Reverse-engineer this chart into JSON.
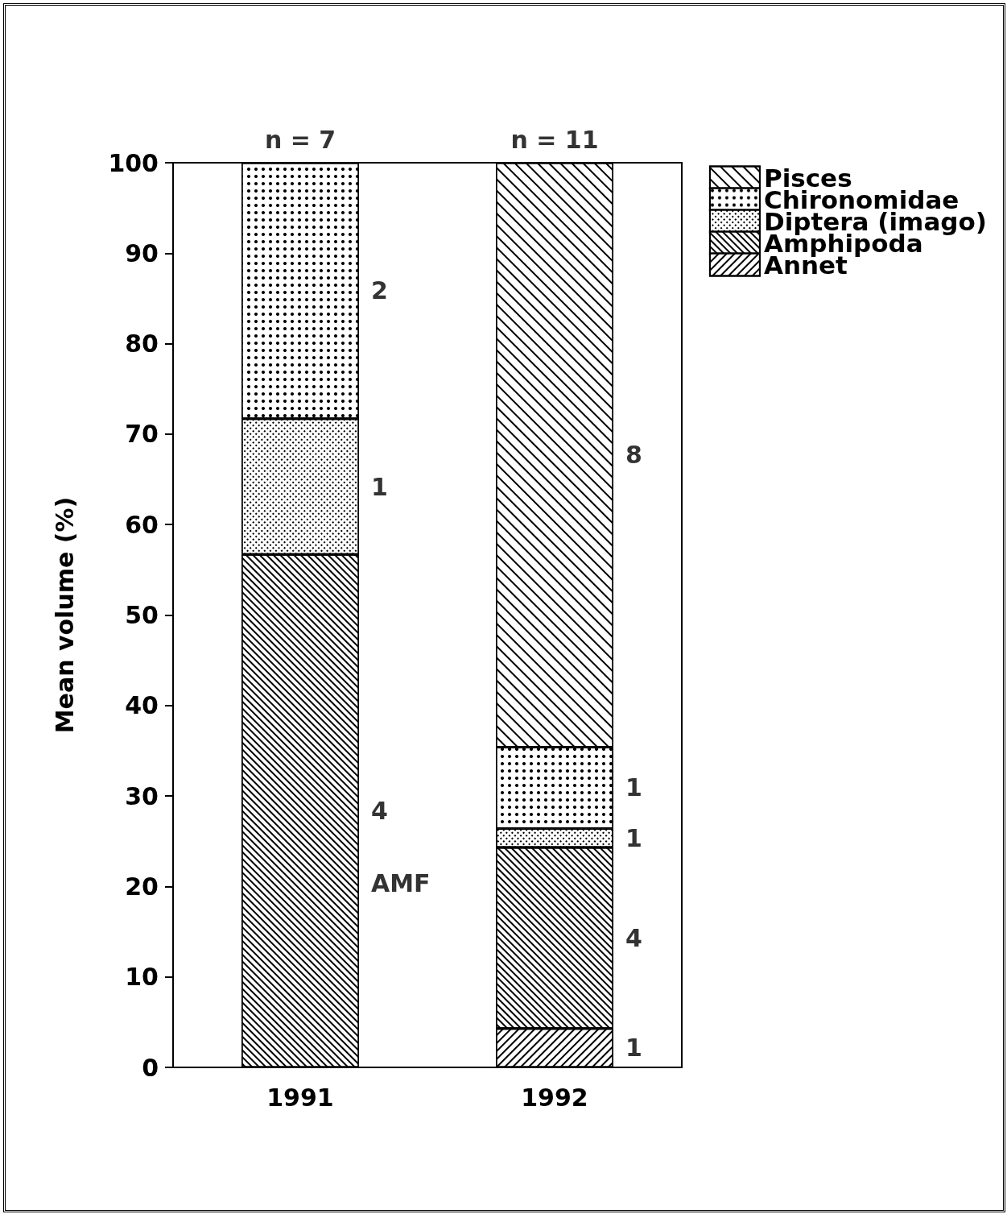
{
  "chart_data": {
    "type": "bar",
    "stacked": true,
    "ylabel": "Mean volume (%)",
    "categories": [
      "1991",
      "1992"
    ],
    "series": [
      {
        "name": "Annet",
        "color": "#ffffff",
        "values": [
          null,
          4.3
        ]
      },
      {
        "name": "Amphipoda",
        "color": "#ffffff",
        "values": [
          56.7,
          20
        ]
      },
      {
        "name": "Diptera (imago)",
        "color": "#ffffff",
        "values": [
          15,
          2.1
        ]
      },
      {
        "name": "Chironomidae",
        "color": "#ffffff",
        "values": [
          28.3,
          9
        ]
      },
      {
        "name": "Pisces",
        "color": "#ffffff",
        "values": [
          null,
          64.6
        ]
      }
    ],
    "ylim": [
      0,
      100
    ],
    "yticks": [
      0,
      10,
      20,
      30,
      40,
      50,
      60,
      70,
      80,
      90,
      100
    ],
    "grid": false,
    "legend": "top right",
    "annotations": [
      {
        "text": "n = 7",
        "x": "1991",
        "y": 100
      },
      {
        "text": "n = 11",
        "x": "1992",
        "y": 100
      },
      "2",
      "1",
      "4",
      "AMF",
      "8",
      "1",
      "1",
      "4",
      "1"
    ]
  }
}
